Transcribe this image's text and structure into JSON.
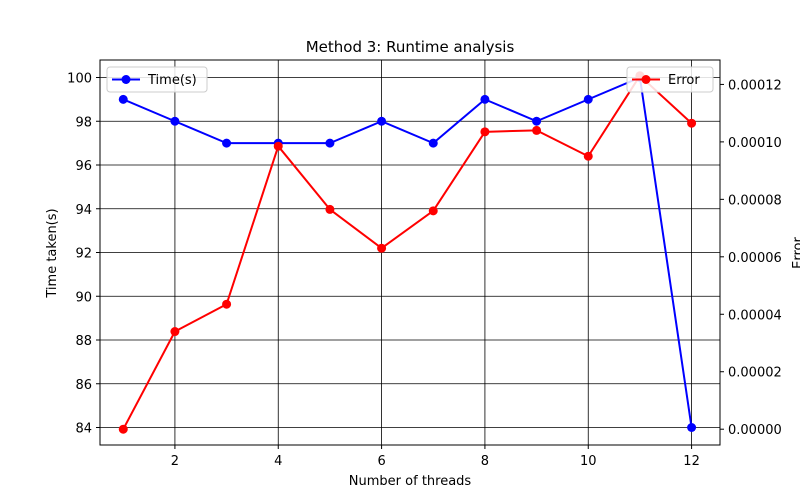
{
  "chart_data": {
    "type": "line",
    "title": "Method 3: Runtime analysis",
    "xlabel": "Number of threads",
    "ylabel_left": "Time taken(s)",
    "ylabel_right": "Error",
    "x": [
      1,
      2,
      3,
      4,
      5,
      6,
      7,
      8,
      9,
      10,
      11,
      12
    ],
    "xlim": [
      0.55,
      12.55
    ],
    "xticks": [
      2,
      4,
      6,
      8,
      10,
      12
    ],
    "ylim_left": [
      83.2,
      100.8
    ],
    "yticks_left": [
      84,
      86,
      88,
      90,
      92,
      94,
      96,
      98,
      100
    ],
    "ylim_right": [
      -5.5e-06,
      0.0001285
    ],
    "yticks_right": [
      0.0,
      2e-05,
      4e-05,
      6e-05,
      8e-05,
      0.0001,
      0.00012
    ],
    "yticks_right_labels": [
      "0.00000",
      "0.00002",
      "0.00004",
      "0.00006",
      "0.00008",
      "0.00010",
      "0.00012"
    ],
    "grid": true,
    "series": [
      {
        "name": "Time(s)",
        "axis": "left",
        "color": "#0000ff",
        "values": [
          99,
          98,
          97,
          97,
          97,
          98,
          97,
          99,
          98,
          99,
          100,
          84
        ],
        "legend_position": "top-left"
      },
      {
        "name": "Error",
        "axis": "right",
        "color": "#ff0000",
        "values": [
          0.0,
          3.4e-05,
          4.35e-05,
          9.85e-05,
          7.65e-05,
          6.3e-05,
          7.6e-05,
          0.0001035,
          0.000104,
          9.5e-05,
          0.000123,
          0.0001065
        ],
        "legend_position": "top-right"
      }
    ]
  }
}
